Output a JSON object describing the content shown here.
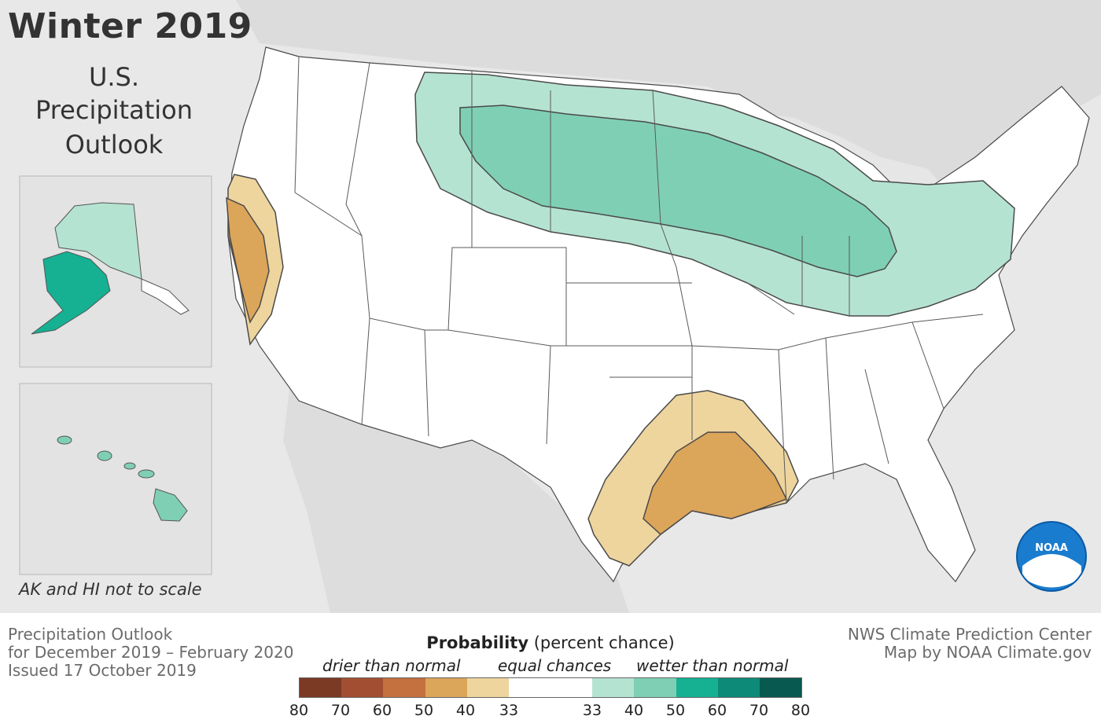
{
  "title": "Winter 2019",
  "subtitle": [
    "U.S.",
    "Precipitation",
    "Outlook"
  ],
  "inset_note": "AK and HI not to scale",
  "footer_left": [
    "Precipitation Outlook",
    "for December 2019 – February 2020",
    "Issued 17 October 2019"
  ],
  "footer_right": [
    "NWS Climate Prediction Center",
    "Map by NOAA Climate.gov"
  ],
  "legend": {
    "title_bold": "Probability",
    "title_rest": " (percent chance)",
    "drier": "drier than normal",
    "equal": "equal chances",
    "wetter": "wetter than normal",
    "ticks": [
      "80",
      "70",
      "60",
      "50",
      "40",
      "33",
      "33",
      "40",
      "50",
      "60",
      "70",
      "80"
    ],
    "colors": [
      "#7b3a23",
      "#a24e32",
      "#c4703f",
      "#dba55a",
      "#eed59e",
      "#ffffff",
      "#b5e3d2",
      "#7fcfb5",
      "#16b093",
      "#0e8a78",
      "#08594f"
    ]
  },
  "logo_text": "NOAA"
}
